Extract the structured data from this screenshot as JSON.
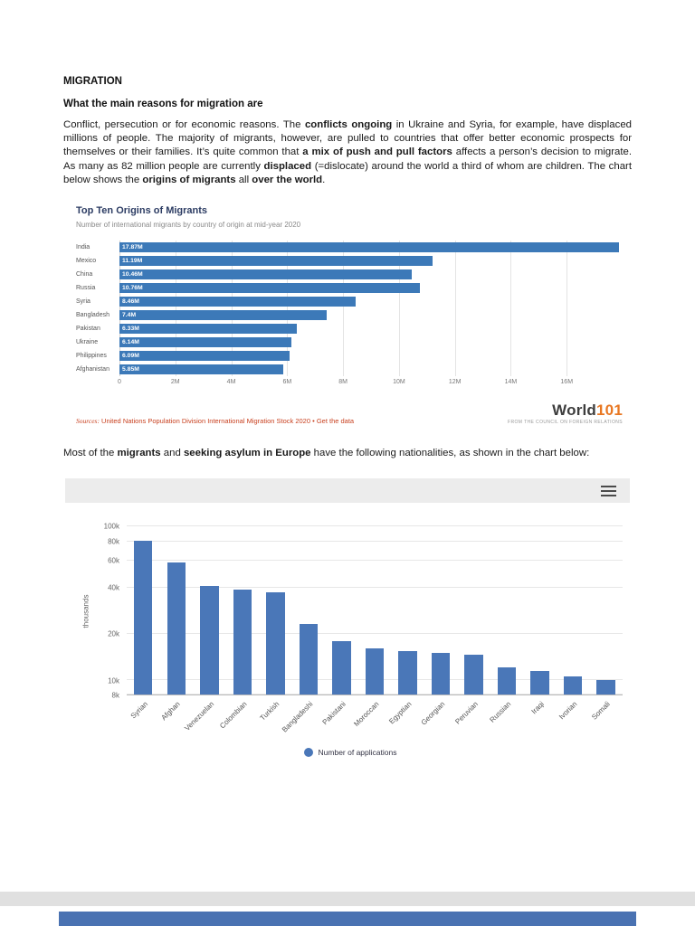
{
  "document": {
    "heading": "MIGRATION",
    "subheading": "What the main reasons for migration are",
    "intro_segments": [
      {
        "t": "Conflict, persecution or for economic reasons. The ",
        "bold": false
      },
      {
        "t": "conflicts ongoing",
        "bold": true
      },
      {
        "t": " in Ukraine and Syria, for example, have displaced millions of people. The majority of migrants, however, are pulled to countries that offer better economic prospects for themselves or their families. It’s quite common that ",
        "bold": false
      },
      {
        "t": "a mix of push and pull factors",
        "bold": true
      },
      {
        "t": " affects a person’s decision to migrate. As many as 82 million people are currently ",
        "bold": false
      },
      {
        "t": "displaced",
        "bold": true
      },
      {
        "t": " (=dislocate) around the world a third of whom are children. The chart below shows the ",
        "bold": false
      },
      {
        "t": "origins of migrants",
        "bold": true
      },
      {
        "t": " all ",
        "bold": false
      },
      {
        "t": "over the world",
        "bold": true
      },
      {
        "t": ".",
        "bold": false
      }
    ],
    "para2_segments": [
      {
        "t": "Most of the ",
        "bold": false
      },
      {
        "t": "migrants",
        "bold": true
      },
      {
        "t": " and ",
        "bold": false
      },
      {
        "t": "seeking asylum in Europe",
        "bold": true
      },
      {
        "t": " have the following nationalities, as shown in the chart below:",
        "bold": false
      }
    ]
  },
  "chart_data": [
    {
      "type": "bar",
      "orientation": "horizontal",
      "title": "Top Ten Origins of Migrants",
      "subtitle": "Number of international migrants by country of origin at mid-year 2020",
      "categories": [
        "India",
        "Mexico",
        "China",
        "Russia",
        "Syria",
        "Bangladesh",
        "Pakistan",
        "Ukraine",
        "Philippines",
        "Afghanistan"
      ],
      "values": [
        17.87,
        11.19,
        10.46,
        10.76,
        8.46,
        7.4,
        6.33,
        6.14,
        6.09,
        5.85
      ],
      "value_labels": [
        "17.87M",
        "11.19M",
        "10.46M",
        "10.76M",
        "8.46M",
        "7.4M",
        "6.33M",
        "6.14M",
        "6.09M",
        "5.85M"
      ],
      "unit": "millions of migrants",
      "xlim": [
        0,
        18
      ],
      "xticks": [
        0,
        2,
        4,
        6,
        8,
        10,
        12,
        14,
        16
      ],
      "xtick_labels": [
        "0",
        "2M",
        "4M",
        "6M",
        "8M",
        "10M",
        "12M",
        "14M",
        "16M"
      ],
      "grid": true,
      "bar_color": "#3c79b8",
      "source_prefix": "Sources:",
      "source_text": " United Nations Population Division International Migration Stock 2020 • ",
      "source_link": "Get the data",
      "source_color": "#c8401f",
      "logo": {
        "word": "World",
        "number": "101",
        "number_color": "#e87722",
        "tagline": "From the Council on Foreign Relations"
      }
    },
    {
      "type": "bar",
      "orientation": "vertical",
      "yscale": "log",
      "ylabel": "thousands",
      "categories": [
        "Syrian",
        "Afghan",
        "Venezuelan",
        "Colombian",
        "Turkish",
        "Bangladeshi",
        "Pakistani",
        "Moroccan",
        "Egyptian",
        "Georgian",
        "Peruvian",
        "Russian",
        "Iraqi",
        "Ivorian",
        "Somali"
      ],
      "values": [
        81,
        58,
        41,
        39,
        37,
        23,
        18,
        16,
        15.5,
        15,
        14.5,
        12,
        11.5,
        10.5,
        10
      ],
      "unit": "thousands of applications",
      "ylim": [
        8,
        100
      ],
      "yticks": [
        100,
        80,
        60,
        40,
        20,
        10,
        8
      ],
      "ytick_labels": [
        "100k",
        "80k",
        "60k",
        "40k",
        "20k",
        "10k",
        "8k"
      ],
      "grid": true,
      "legend": [
        "Number of applications"
      ],
      "legend_position": "bottom",
      "bar_color": "#4a77b8"
    }
  ],
  "next_page": {
    "banner_color": "#4a72b2"
  }
}
